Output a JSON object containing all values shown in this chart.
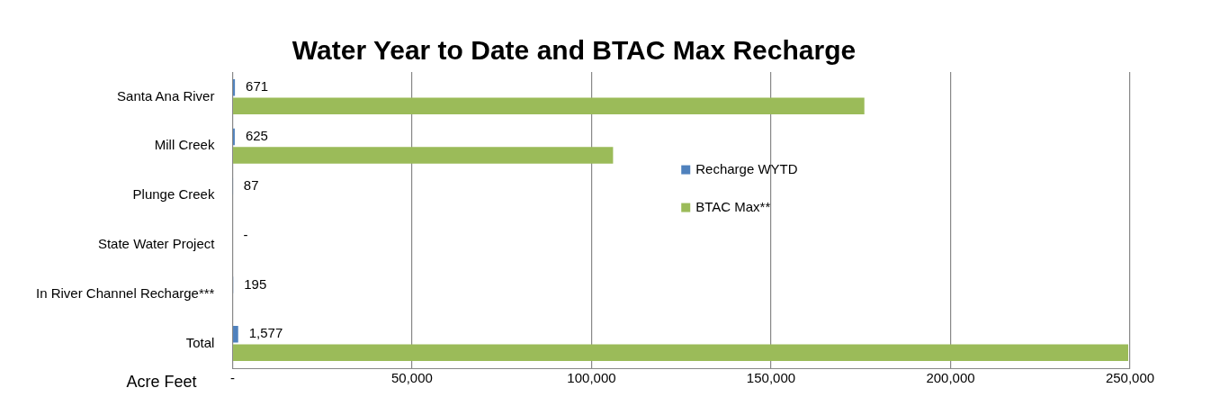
{
  "chart_data": {
    "type": "bar",
    "orientation": "horizontal",
    "title": "Water Year to Date and BTAC Max Recharge",
    "xlabel": "Acre Feet",
    "categories": [
      "Santa Ana River",
      "Mill Creek",
      "Plunge Creek",
      "State Water Project",
      "In River Channel Recharge***",
      "Total"
    ],
    "series": [
      {
        "name": "Recharge WYTD",
        "color": "#4f81bd",
        "values": [
          671,
          625,
          87,
          0,
          195,
          1577
        ],
        "value_labels": [
          "671",
          "625",
          "87",
          "-",
          "195",
          "1,577"
        ]
      },
      {
        "name": "BTAC Max**",
        "color": "#9bbb59",
        "values": [
          176000,
          106000,
          null,
          null,
          null,
          249500
        ]
      }
    ],
    "xlim": [
      0,
      250000
    ],
    "xticks": [
      {
        "value": 0,
        "label": "-"
      },
      {
        "value": 50000,
        "label": "50,000"
      },
      {
        "value": 100000,
        "label": "100,000"
      },
      {
        "value": 150000,
        "label": "150,000"
      },
      {
        "value": 200000,
        "label": "200,000"
      },
      {
        "value": 250000,
        "label": "250,000"
      }
    ],
    "grid": "x",
    "legend": "right"
  }
}
